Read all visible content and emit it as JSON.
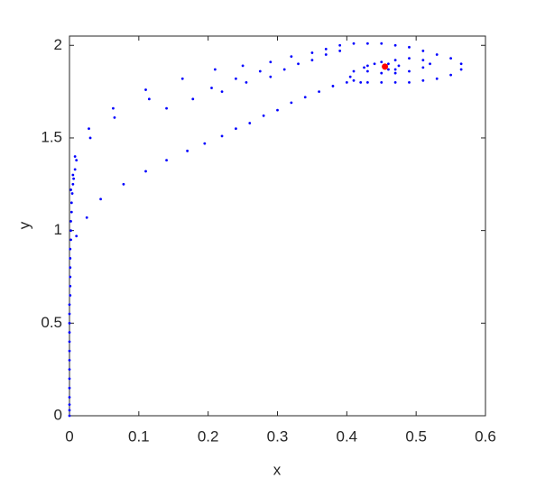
{
  "chart_data": {
    "type": "scatter",
    "x_label": "x",
    "y_label": "y",
    "xlim": [
      0,
      0.6
    ],
    "ylim": [
      0,
      2.05
    ],
    "xticks": [
      0,
      0.1,
      0.2,
      0.3,
      0.4,
      0.5,
      0.6
    ],
    "yticks": [
      0,
      0.5,
      1,
      1.5,
      2
    ],
    "grid": false,
    "series": [
      {
        "color": "#0000ff",
        "size": 1.4,
        "x": [
          0,
          0,
          0,
          0,
          0,
          0,
          0,
          0,
          0,
          0,
          0,
          0,
          0,
          0,
          0.001,
          0.001,
          0.001,
          0.001,
          0.001,
          0.001,
          0.002,
          0.002,
          0.002,
          0.003,
          0.003,
          0.004,
          0.005,
          0.006,
          0.008,
          0.002,
          0.005,
          0.008,
          0.028,
          0.063,
          0.11,
          0.163,
          0.21,
          0.25,
          0.29,
          0.32,
          0.35,
          0.37,
          0.39,
          0.41,
          0.43,
          0.45,
          0.47,
          0.49,
          0.51,
          0.53,
          0.55,
          0.565,
          0.565,
          0.55,
          0.53,
          0.51,
          0.49,
          0.47,
          0.45,
          0.43,
          0.41,
          0.405,
          0.41,
          0.43,
          0.45,
          0.47,
          0.49,
          0.51,
          0.52,
          0.51,
          0.49,
          0.47,
          0.45,
          0.43,
          0.425,
          0.44,
          0.46,
          0.475,
          0.47,
          0.46,
          0.01,
          0.03,
          0.065,
          0.115,
          0.14,
          0.178,
          0.205,
          0.22,
          0.24,
          0.255,
          0.275,
          0.29,
          0.31,
          0.33,
          0.35,
          0.37,
          0.39,
          0.01,
          0.025,
          0.045,
          0.078,
          0.11,
          0.14,
          0.17,
          0.195,
          0.22,
          0.24,
          0.26,
          0.28,
          0.3,
          0.32,
          0.34,
          0.36,
          0.38,
          0.4,
          0.42
        ],
        "y": [
          0,
          0.03,
          0.06,
          0.1,
          0.15,
          0.2,
          0.25,
          0.3,
          0.35,
          0.4,
          0.45,
          0.5,
          0.55,
          0.6,
          0.65,
          0.7,
          0.75,
          0.8,
          0.85,
          0.9,
          0.95,
          1.0,
          1.05,
          1.1,
          1.15,
          1.2,
          1.25,
          1.28,
          1.33,
          1.22,
          1.3,
          1.4,
          1.55,
          1.66,
          1.76,
          1.82,
          1.87,
          1.89,
          1.91,
          1.94,
          1.96,
          1.98,
          2.0,
          2.01,
          2.01,
          2.01,
          2.0,
          1.99,
          1.97,
          1.95,
          1.93,
          1.9,
          1.87,
          1.84,
          1.82,
          1.81,
          1.8,
          1.8,
          1.8,
          1.8,
          1.81,
          1.83,
          1.86,
          1.89,
          1.91,
          1.92,
          1.93,
          1.92,
          1.9,
          1.88,
          1.86,
          1.85,
          1.85,
          1.86,
          1.88,
          1.9,
          1.9,
          1.89,
          1.87,
          1.87,
          1.38,
          1.5,
          1.61,
          1.71,
          1.66,
          1.71,
          1.77,
          1.75,
          1.82,
          1.8,
          1.86,
          1.83,
          1.87,
          1.9,
          1.92,
          1.95,
          1.97,
          0.97,
          1.07,
          1.17,
          1.25,
          1.32,
          1.38,
          1.43,
          1.47,
          1.51,
          1.55,
          1.58,
          1.62,
          1.65,
          1.69,
          1.72,
          1.75,
          1.78,
          1.8,
          1.8
        ]
      },
      {
        "color": "#ff0000",
        "size": 3.5,
        "x": [
          0.455
        ],
        "y": [
          1.885
        ]
      }
    ]
  }
}
